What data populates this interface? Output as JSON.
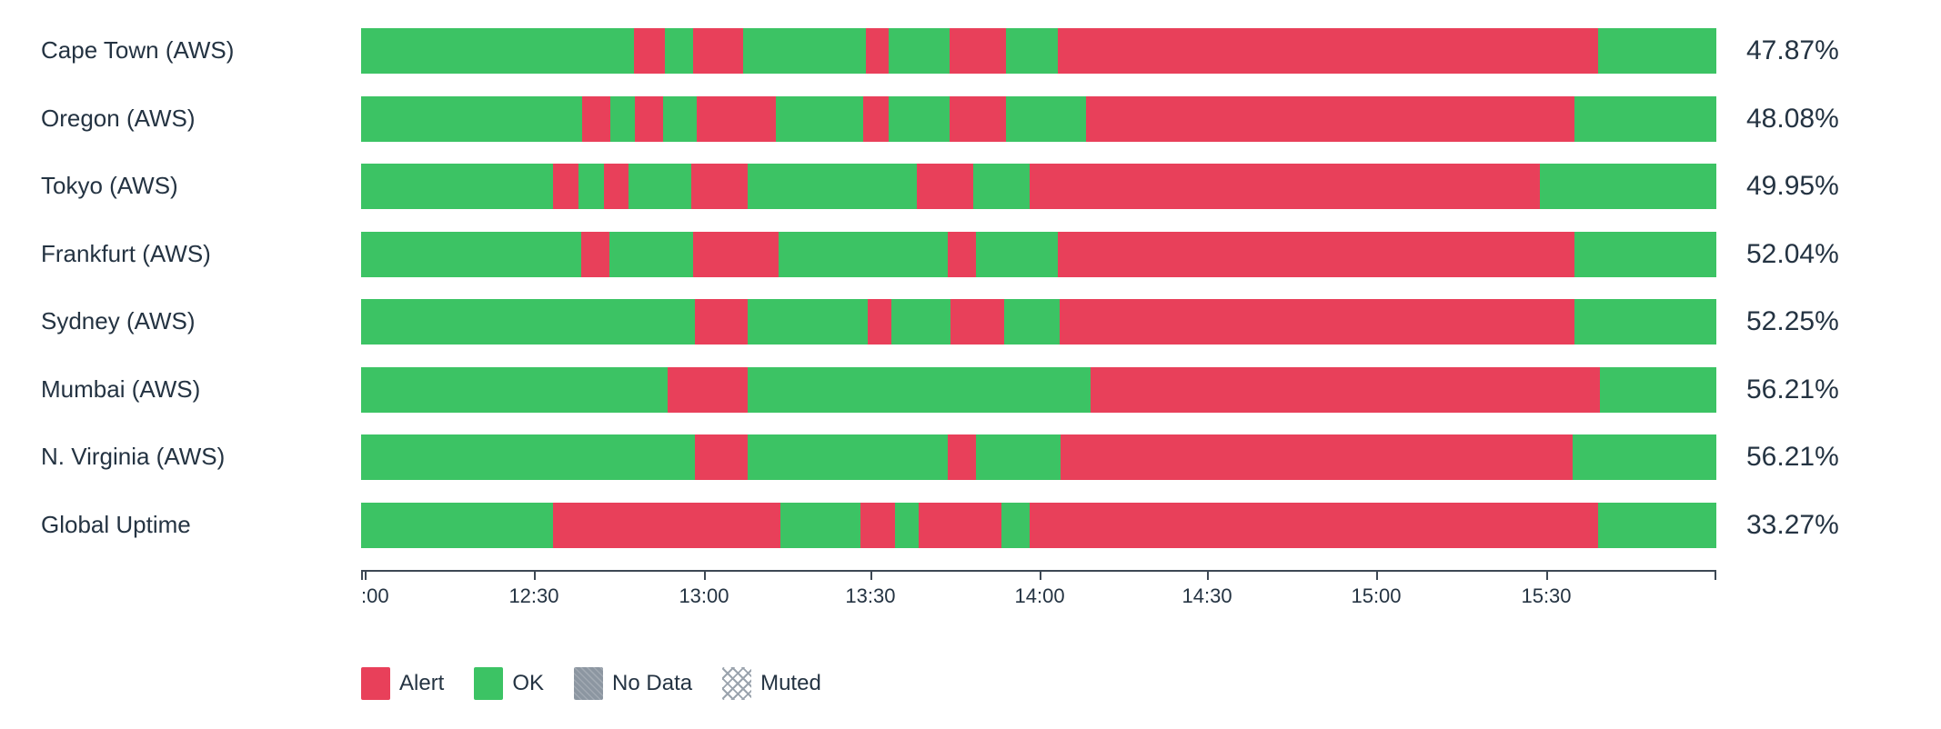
{
  "chart_data": {
    "type": "bar",
    "variant": "horizontal-status-timeline-stacked-100pct",
    "title": "",
    "legend_position": "bottom-left",
    "grid": false,
    "colors": {
      "ok": "#3cc364",
      "alert": "#e8405a",
      "no_data": "#8c96a1",
      "muted_line": "#9aa3ad",
      "text": "#243342",
      "axis": "#3d4854"
    },
    "rows": [
      {
        "label": "Cape Town (AWS)",
        "uptime": "47.87%",
        "segments": [
          [
            "ok",
            20.13
          ],
          [
            "alert",
            2.28
          ],
          [
            "ok",
            2.08
          ],
          [
            "alert",
            3.69
          ],
          [
            "ok",
            9.06
          ],
          [
            "alert",
            1.68
          ],
          [
            "ok",
            4.5
          ],
          [
            "alert",
            4.16
          ],
          [
            "ok",
            3.83
          ],
          [
            "alert",
            39.87
          ],
          [
            "ok",
            8.72
          ]
        ]
      },
      {
        "label": "Oregon (AWS)",
        "uptime": "48.08%",
        "segments": [
          [
            "ok",
            16.28
          ],
          [
            "alert",
            2.08
          ],
          [
            "ok",
            1.85
          ],
          [
            "alert",
            2.08
          ],
          [
            "ok",
            2.45
          ],
          [
            "alert",
            5.87
          ],
          [
            "ok",
            6.44
          ],
          [
            "alert",
            1.88
          ],
          [
            "ok",
            4.5
          ],
          [
            "alert",
            4.16
          ],
          [
            "ok",
            5.91
          ],
          [
            "alert",
            36.04
          ],
          [
            "ok",
            10.46
          ]
        ]
      },
      {
        "label": "Tokyo (AWS)",
        "uptime": "49.95%",
        "segments": [
          [
            "ok",
            14.19
          ],
          [
            "alert",
            1.85
          ],
          [
            "ok",
            1.88
          ],
          [
            "alert",
            1.81
          ],
          [
            "ok",
            4.63
          ],
          [
            "alert",
            4.16
          ],
          [
            "ok",
            12.48
          ],
          [
            "alert",
            4.16
          ],
          [
            "ok",
            4.16
          ],
          [
            "alert",
            37.65
          ],
          [
            "ok",
            13.03
          ]
        ]
      },
      {
        "label": "Frankfurt (AWS)",
        "uptime": "52.04%",
        "segments": [
          [
            "ok",
            16.21
          ],
          [
            "alert",
            2.08
          ],
          [
            "ok",
            6.21
          ],
          [
            "alert",
            6.31
          ],
          [
            "ok",
            12.48
          ],
          [
            "alert",
            2.08
          ],
          [
            "ok",
            6.04
          ],
          [
            "alert",
            38.12
          ],
          [
            "ok",
            10.47
          ]
        ]
      },
      {
        "label": "Sydney (AWS)",
        "uptime": "52.25%",
        "segments": [
          [
            "ok",
            24.6
          ],
          [
            "alert",
            3.93
          ],
          [
            "ok",
            8.83
          ],
          [
            "alert",
            1.77
          ],
          [
            "ok",
            4.33
          ],
          [
            "alert",
            3.99
          ],
          [
            "ok",
            4.09
          ],
          [
            "alert",
            37.99
          ],
          [
            "ok",
            10.47
          ]
        ]
      },
      {
        "label": "Mumbai (AWS)",
        "uptime": "56.21%",
        "segments": [
          [
            "ok",
            22.65
          ],
          [
            "alert",
            5.87
          ],
          [
            "ok",
            25.3
          ],
          [
            "alert",
            37.58
          ],
          [
            "ok",
            8.6
          ]
        ]
      },
      {
        "label": "N. Virginia (AWS)",
        "uptime": "56.21%",
        "segments": [
          [
            "ok",
            24.6
          ],
          [
            "alert",
            3.93
          ],
          [
            "ok",
            14.77
          ],
          [
            "alert",
            2.08
          ],
          [
            "ok",
            6.24
          ],
          [
            "alert",
            37.79
          ],
          [
            "ok",
            10.59
          ]
        ]
      },
      {
        "label": "Global Uptime",
        "uptime": "33.27%",
        "segments": [
          [
            "ok",
            14.19
          ],
          [
            "alert",
            16.78
          ],
          [
            "ok",
            5.87
          ],
          [
            "alert",
            2.58
          ],
          [
            "ok",
            1.71
          ],
          [
            "alert",
            6.11
          ],
          [
            "ok",
            2.08
          ],
          [
            "alert",
            41.95
          ],
          [
            "ok",
            8.73
          ]
        ]
      }
    ],
    "axis": {
      "edge_ticks": [
        0,
        100
      ],
      "ticks": [
        {
          "label": ":00",
          "pos": 0.3,
          "align": "start"
        },
        {
          "label": "12:30",
          "pos": 12.75,
          "align": "center"
        },
        {
          "label": "13:00",
          "pos": 25.3,
          "align": "center"
        },
        {
          "label": "13:30",
          "pos": 37.58,
          "align": "center"
        },
        {
          "label": "14:00",
          "pos": 50.07,
          "align": "center"
        },
        {
          "label": "14:30",
          "pos": 62.42,
          "align": "center"
        },
        {
          "label": "15:00",
          "pos": 74.9,
          "align": "center"
        },
        {
          "label": "15:30",
          "pos": 87.45,
          "align": "center"
        }
      ]
    },
    "legend": [
      {
        "id": "alert",
        "label": "Alert"
      },
      {
        "id": "ok",
        "label": "OK"
      },
      {
        "id": "nodata",
        "label": "No Data"
      },
      {
        "id": "muted",
        "label": "Muted"
      }
    ]
  }
}
